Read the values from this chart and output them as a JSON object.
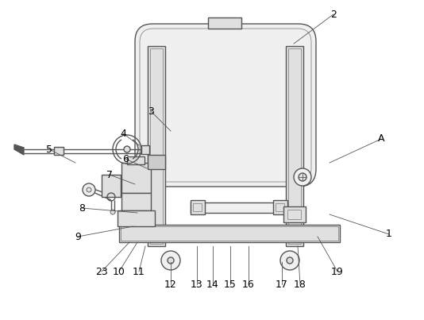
{
  "bg_color": "#ffffff",
  "lc": "#555555",
  "lc_dark": "#333333",
  "lc_light": "#888888",
  "fill_light": "#f0f0f0",
  "fill_mid": "#e0e0e0",
  "fill_dark": "#cccccc",
  "label_fontsize": 9,
  "annotations": [
    [
      "2",
      370,
      55,
      420,
      18
    ],
    [
      "A",
      415,
      205,
      480,
      175
    ],
    [
      "1",
      415,
      270,
      490,
      295
    ],
    [
      "3",
      215,
      165,
      190,
      140
    ],
    [
      "4",
      175,
      183,
      155,
      168
    ],
    [
      "5",
      95,
      205,
      62,
      188
    ],
    [
      "6",
      185,
      212,
      158,
      200
    ],
    [
      "7",
      170,
      232,
      138,
      220
    ],
    [
      "8",
      173,
      268,
      103,
      262
    ],
    [
      "9",
      168,
      285,
      98,
      298
    ],
    [
      "23",
      163,
      305,
      128,
      342
    ],
    [
      "10",
      173,
      305,
      150,
      342
    ],
    [
      "11",
      183,
      310,
      175,
      342
    ],
    [
      "12",
      215,
      330,
      215,
      358
    ],
    [
      "13",
      248,
      310,
      248,
      358
    ],
    [
      "14",
      268,
      310,
      268,
      358
    ],
    [
      "15",
      290,
      310,
      290,
      358
    ],
    [
      "16",
      313,
      310,
      313,
      358
    ],
    [
      "17",
      355,
      330,
      355,
      358
    ],
    [
      "18",
      375,
      310,
      378,
      358
    ],
    [
      "19",
      400,
      298,
      425,
      342
    ]
  ]
}
